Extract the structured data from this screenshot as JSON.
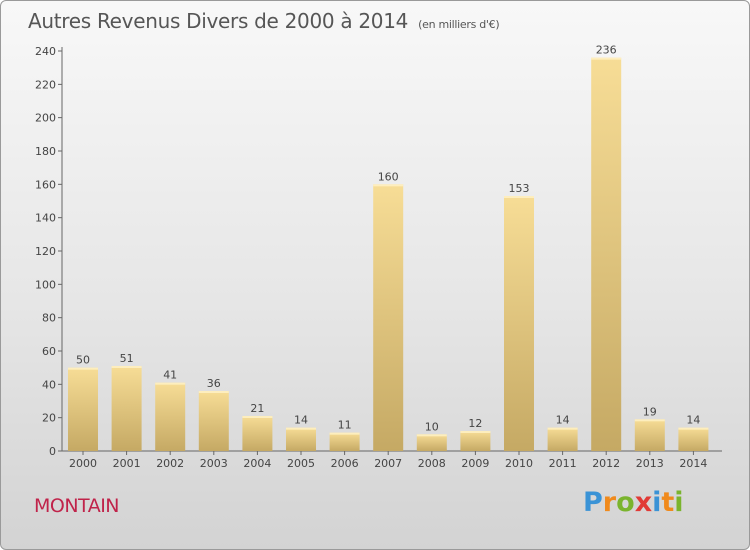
{
  "chart_data": {
    "type": "bar",
    "title": "Autres Revenus Divers de 2000 à 2014",
    "subtitle": "(en milliers d'€)",
    "categories": [
      "2000",
      "2001",
      "2002",
      "2003",
      "2004",
      "2005",
      "2006",
      "2007",
      "2008",
      "2009",
      "2010",
      "2011",
      "2012",
      "2013",
      "2014"
    ],
    "values": [
      50,
      51,
      41,
      36,
      21,
      14,
      11,
      160,
      10,
      12,
      153,
      14,
      236,
      19,
      14
    ],
    "ylim": [
      0,
      240
    ],
    "yticks": [
      0,
      20,
      40,
      60,
      80,
      100,
      120,
      140,
      160,
      180,
      200,
      220,
      240
    ],
    "xlabel": "",
    "ylabel": "",
    "grid": false,
    "colors": {
      "bar_light": "#f7dd96",
      "bar_dark": "#c5a964"
    }
  },
  "footer": {
    "commune": "MONTAIN",
    "commune_color": "#c0234a"
  },
  "logo": {
    "letters": [
      "P",
      "r",
      "o",
      "x",
      "i",
      "t",
      "i"
    ],
    "colors": [
      "#3a93d6",
      "#f08a1c",
      "#7ab42d",
      "#e13a36",
      "#3a93d6",
      "#f08a1c",
      "#7ab42d"
    ]
  }
}
